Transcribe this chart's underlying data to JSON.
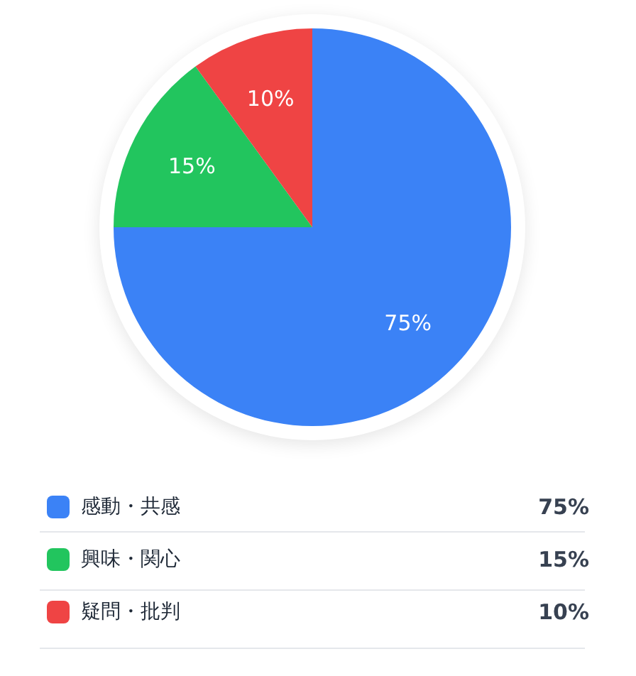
{
  "chart_data": {
    "type": "pie",
    "categories": [
      "感動・共感",
      "興味・関心",
      "疑問・批判"
    ],
    "values": [
      75,
      15,
      10
    ],
    "colors": [
      "#3b82f6",
      "#22c55e",
      "#ef4444"
    ],
    "value_labels": [
      "75%",
      "15%",
      "10%"
    ],
    "legend": "bottom"
  }
}
